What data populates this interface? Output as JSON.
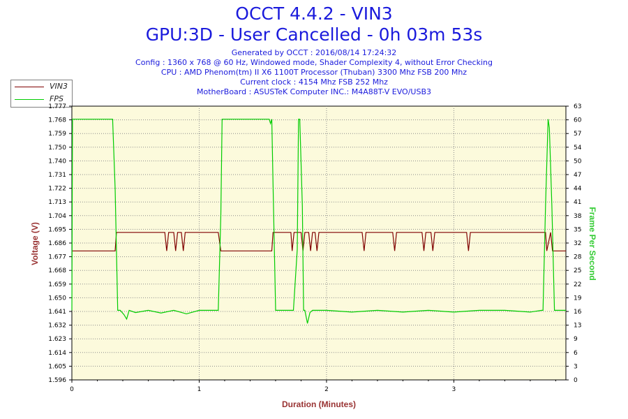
{
  "header": {
    "title": "OCCT 4.4.2 - VIN3",
    "subtitle": "GPU:3D - User Cancelled - 0h 03m 53s",
    "info_lines": [
      "Generated by OCCT : 2016/08/14 17:24:32",
      "Config : 1360 x 768 @ 60 Hz, Windowed mode, Shader Complexity 4, without Error Checking",
      "CPU : AMD Phenom(tm) II X6 1100T Processor (Thuban) 3300 Mhz FSB 200 Mhz",
      "Current clock : 4154 Mhz FSB 252 Mhz",
      "MotherBoard : ASUSTeK Computer INC.: M4A88T-V EVO/USB3"
    ]
  },
  "legend": {
    "items": [
      "VIN3",
      "FPS"
    ]
  },
  "colors": {
    "vin3": "#800000",
    "fps": "#00cc00",
    "plot_bg": "#fcfadc",
    "grid": "#8c8c8c",
    "title": "#1a1adc",
    "axis_label": "#993333",
    "right_label": "#33cc33"
  },
  "chart_data": {
    "type": "line",
    "xlabel": "Duration (Minutes)",
    "ylabel_left": "Voltage (V)",
    "ylabel_right": "Frame Per Second",
    "grid": true,
    "legend_position": "top-left",
    "xlim": [
      0,
      3.88
    ],
    "x_ticks": [
      0,
      1,
      2,
      3
    ],
    "ylim_left": [
      1.596,
      1.777
    ],
    "y_ticks_left": [
      "1.596",
      "1.605",
      "1.614",
      "1.623",
      "1.632",
      "1.641",
      "1.650",
      "1.659",
      "1.668",
      "1.677",
      "1.686",
      "1.695",
      "1.704",
      "1.713",
      "1.722",
      "1.731",
      "1.740",
      "1.750",
      "1.759",
      "1.768",
      "1.777"
    ],
    "ylim_right": [
      0,
      63
    ],
    "y_ticks_right": [
      0,
      3,
      6,
      9,
      13,
      16,
      19,
      22,
      25,
      28,
      32,
      35,
      38,
      41,
      44,
      47,
      50,
      54,
      57,
      60,
      63
    ],
    "series": [
      {
        "name": "VIN3",
        "axis": "left",
        "x": [
          0,
          0.34,
          0.35,
          0.73,
          0.745,
          0.76,
          0.8,
          0.815,
          0.83,
          0.86,
          0.875,
          0.89,
          1.15,
          1.17,
          1.57,
          1.58,
          1.72,
          1.73,
          1.745,
          1.76,
          1.8,
          1.815,
          1.83,
          1.86,
          1.875,
          1.89,
          1.91,
          1.925,
          1.94,
          2.28,
          2.295,
          2.31,
          2.52,
          2.535,
          2.55,
          2.75,
          2.765,
          2.78,
          2.82,
          2.835,
          2.85,
          3.1,
          3.115,
          3.13,
          3.72,
          3.73,
          3.76,
          3.775,
          3.79,
          3.88
        ],
        "values": [
          1.6813,
          1.6813,
          1.6935,
          1.6935,
          1.6813,
          1.6935,
          1.6935,
          1.6813,
          1.6935,
          1.6935,
          1.6813,
          1.6935,
          1.6935,
          1.6813,
          1.6813,
          1.6935,
          1.6935,
          1.6813,
          1.6935,
          1.6935,
          1.6935,
          1.6813,
          1.6935,
          1.6935,
          1.6813,
          1.6935,
          1.6935,
          1.6813,
          1.6935,
          1.6935,
          1.6813,
          1.6935,
          1.6935,
          1.6813,
          1.6935,
          1.6935,
          1.6813,
          1.6935,
          1.6935,
          1.6813,
          1.6935,
          1.6935,
          1.6813,
          1.6935,
          1.6935,
          1.6813,
          1.6935,
          1.6813,
          1.6813,
          1.6813
        ]
      },
      {
        "name": "FPS",
        "axis": "right",
        "x": [
          0,
          0.005,
          0.32,
          0.34,
          0.36,
          0.38,
          0.41,
          0.43,
          0.45,
          0.5,
          0.6,
          0.7,
          0.8,
          0.9,
          1.0,
          1.1,
          1.15,
          1.17,
          1.18,
          1.55,
          1.56,
          1.57,
          1.58,
          1.6,
          1.65,
          1.7,
          1.74,
          1.77,
          1.78,
          1.79,
          1.81,
          1.82,
          1.83,
          1.85,
          1.87,
          1.89,
          1.9,
          2.0,
          2.2,
          2.4,
          2.6,
          2.8,
          3.0,
          3.2,
          3.4,
          3.6,
          3.69,
          3.7,
          3.72,
          3.74,
          3.75,
          3.77,
          3.79,
          3.8,
          3.88
        ],
        "values": [
          16,
          60,
          60,
          44,
          16,
          16,
          15,
          14,
          16,
          15.5,
          16,
          15.4,
          16,
          15.2,
          16,
          16,
          16,
          38,
          60,
          60,
          59,
          60,
          45,
          16,
          16,
          16,
          16,
          30,
          60,
          60,
          40,
          16,
          16,
          13,
          15.5,
          16,
          16,
          16,
          15.6,
          16,
          15.6,
          16,
          15.6,
          16,
          16,
          15.6,
          16,
          16,
          40,
          60,
          58,
          40,
          16,
          16,
          16
        ]
      }
    ]
  }
}
